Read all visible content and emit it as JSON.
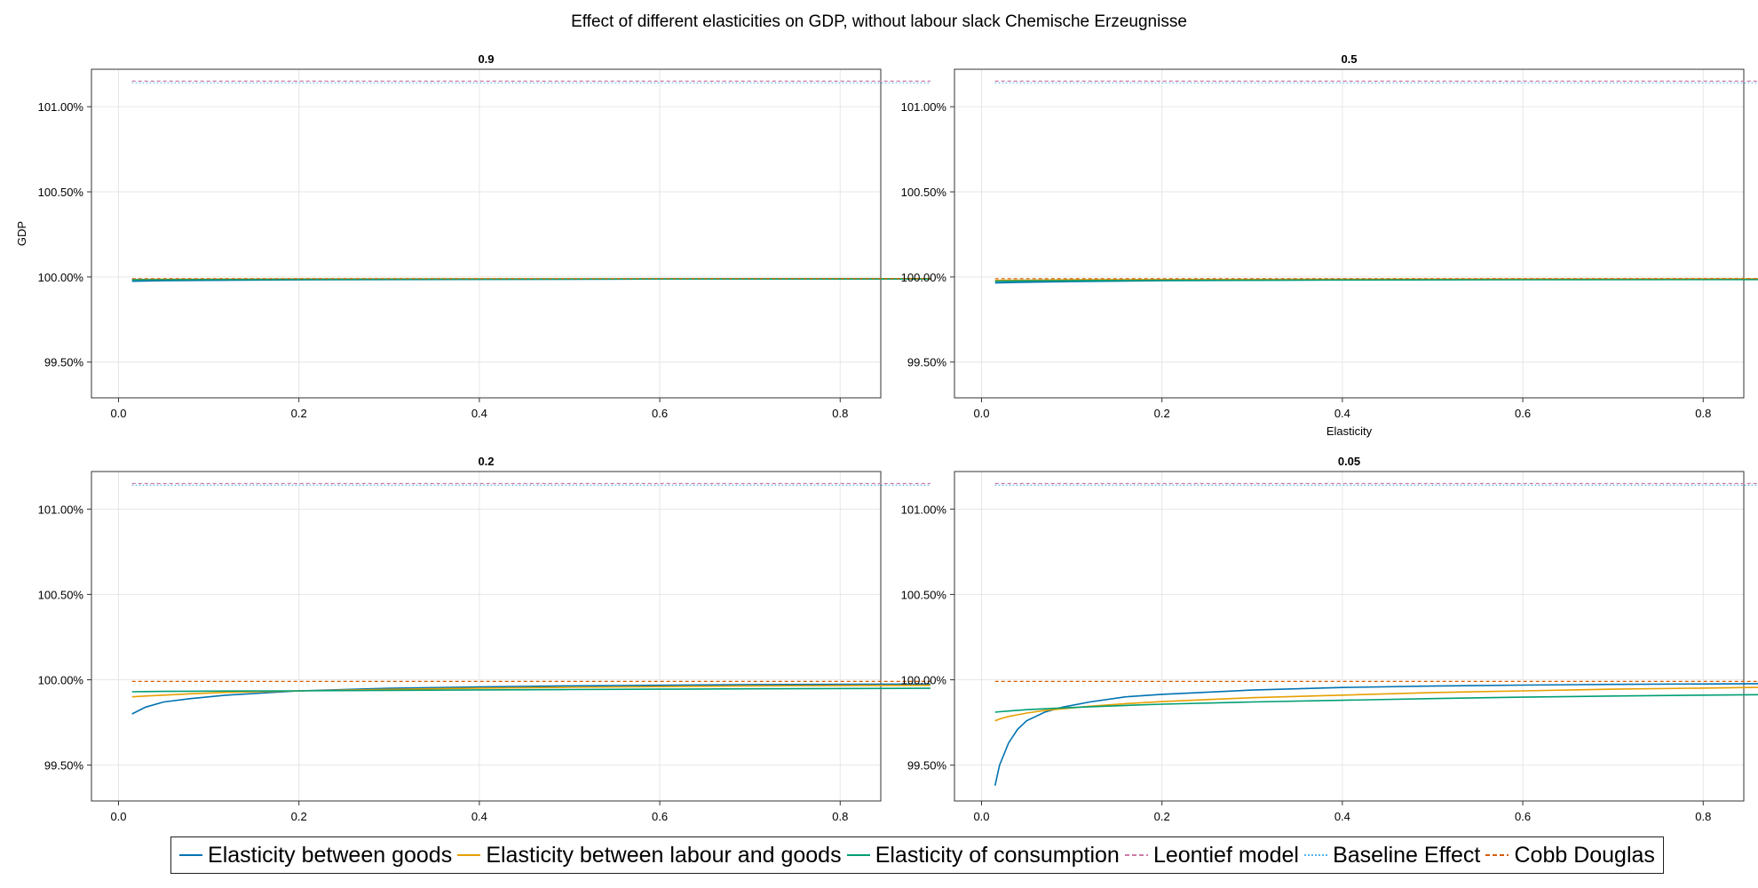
{
  "chart_data": {
    "type": "line",
    "title": "Effect of different elasticities on GDP, without labour slack Chemische Erzeugnisse",
    "ylabel": "GDP",
    "xlabel": "Elasticity",
    "xlim": [
      -0.03,
      0.845
    ],
    "ylim": [
      99.29,
      101.22
    ],
    "xticks": [
      0.0,
      0.2,
      0.4,
      0.6,
      0.8
    ],
    "xtick_labels": [
      "0.0",
      "0.2",
      "0.4",
      "0.6",
      "0.8"
    ],
    "yticks": [
      99.5,
      100.0,
      100.5,
      101.0
    ],
    "ytick_labels": [
      "99.50%",
      "100.00%",
      "100.50%",
      "101.00%"
    ],
    "grid": true,
    "legend_position": "bottom",
    "series_styles": [
      {
        "name": "Elasticity between goods",
        "color": "#0072b2",
        "style": "solid"
      },
      {
        "name": "Elasticity between labour and goods",
        "color": "#e69f00",
        "style": "solid"
      },
      {
        "name": "Elasticity of consumption",
        "color": "#009e73",
        "style": "solid"
      },
      {
        "name": "Leontief model",
        "color": "#cc79a7",
        "style": "dashed"
      },
      {
        "name": "Baseline Effect",
        "color": "#56b4e9",
        "style": "dotted"
      },
      {
        "name": "Cobb Douglas",
        "color": "#d55e00",
        "style": "dashed"
      }
    ],
    "panels": [
      {
        "title": "0.9",
        "x": [
          0.015,
          0.05,
          0.1,
          0.2,
          0.4,
          0.6,
          0.9
        ],
        "series": [
          {
            "name": "Elasticity between goods",
            "values": [
              99.975,
              99.978,
              99.98,
              99.983,
              99.986,
              99.988,
              99.989
            ]
          },
          {
            "name": "Elasticity between labour and goods",
            "values": [
              99.985,
              99.986,
              99.987,
              99.988,
              99.989,
              99.989,
              99.99
            ]
          },
          {
            "name": "Elasticity of consumption",
            "values": [
              99.983,
              99.984,
              99.985,
              99.986,
              99.987,
              99.988,
              99.988
            ]
          },
          {
            "name": "Leontief model",
            "values": [
              101.15,
              101.15,
              101.15,
              101.15,
              101.15,
              101.15,
              101.15
            ]
          },
          {
            "name": "Baseline Effect",
            "values": [
              101.14,
              101.14,
              101.14,
              101.14,
              101.14,
              101.14,
              101.14
            ]
          },
          {
            "name": "Cobb Douglas",
            "values": [
              99.99,
              99.99,
              99.99,
              99.99,
              99.99,
              99.99,
              99.99
            ]
          }
        ]
      },
      {
        "title": "0.5",
        "x": [
          0.015,
          0.05,
          0.1,
          0.2,
          0.4,
          0.6,
          0.9
        ],
        "series": [
          {
            "name": "Elasticity between goods",
            "values": [
              99.965,
              99.969,
              99.973,
              99.978,
              99.983,
              99.986,
              99.988
            ]
          },
          {
            "name": "Elasticity between labour and goods",
            "values": [
              99.98,
              99.981,
              99.983,
              99.985,
              99.987,
              99.988,
              99.989
            ]
          },
          {
            "name": "Elasticity of consumption",
            "values": [
              99.975,
              99.977,
              99.978,
              99.98,
              99.982,
              99.984,
              99.985
            ]
          },
          {
            "name": "Leontief model",
            "values": [
              101.15,
              101.15,
              101.15,
              101.15,
              101.15,
              101.15,
              101.15
            ]
          },
          {
            "name": "Baseline Effect",
            "values": [
              101.14,
              101.14,
              101.14,
              101.14,
              101.14,
              101.14,
              101.14
            ]
          },
          {
            "name": "Cobb Douglas",
            "values": [
              99.99,
              99.99,
              99.99,
              99.99,
              99.99,
              99.99,
              99.99
            ]
          }
        ]
      },
      {
        "title": "0.2",
        "x": [
          0.015,
          0.03,
          0.05,
          0.08,
          0.12,
          0.2,
          0.3,
          0.4,
          0.5,
          0.6,
          0.7,
          0.9
        ],
        "series": [
          {
            "name": "Elasticity between goods",
            "values": [
              99.8,
              99.84,
              99.87,
              99.89,
              99.91,
              99.935,
              99.95,
              99.958,
              99.964,
              99.968,
              99.972,
              99.975
            ]
          },
          {
            "name": "Elasticity between labour and goods",
            "values": [
              99.9,
              99.905,
              99.91,
              99.918,
              99.926,
              99.935,
              99.944,
              99.951,
              99.956,
              99.96,
              99.964,
              99.968
            ]
          },
          {
            "name": "Elasticity of consumption",
            "values": [
              99.93,
              99.931,
              99.932,
              99.933,
              99.934,
              99.935,
              99.938,
              99.941,
              99.943,
              99.945,
              99.947,
              99.95
            ]
          },
          {
            "name": "Leontief model",
            "values": [
              101.15,
              101.15,
              101.15,
              101.15,
              101.15,
              101.15,
              101.15,
              101.15,
              101.15,
              101.15,
              101.15,
              101.15
            ]
          },
          {
            "name": "Baseline Effect",
            "values": [
              101.14,
              101.14,
              101.14,
              101.14,
              101.14,
              101.14,
              101.14,
              101.14,
              101.14,
              101.14,
              101.14,
              101.14
            ]
          },
          {
            "name": "Cobb Douglas",
            "values": [
              99.99,
              99.99,
              99.99,
              99.99,
              99.99,
              99.99,
              99.99,
              99.99,
              99.99,
              99.99,
              99.99,
              99.99
            ]
          }
        ]
      },
      {
        "title": "0.05",
        "x": [
          0.015,
          0.02,
          0.03,
          0.04,
          0.05,
          0.07,
          0.09,
          0.12,
          0.16,
          0.2,
          0.3,
          0.4,
          0.5,
          0.6,
          0.7,
          0.9
        ],
        "series": [
          {
            "name": "Elasticity between goods",
            "values": [
              99.38,
              99.5,
              99.63,
              99.71,
              99.76,
              99.81,
              99.84,
              99.87,
              99.9,
              99.915,
              99.94,
              99.955,
              99.963,
              99.969,
              99.973,
              99.978
            ]
          },
          {
            "name": "Elasticity between labour and goods",
            "values": [
              99.76,
              99.77,
              99.785,
              99.795,
              99.805,
              99.82,
              99.83,
              99.845,
              99.86,
              99.872,
              99.895,
              99.91,
              99.925,
              99.935,
              99.945,
              99.958
            ]
          },
          {
            "name": "Elasticity of consumption",
            "values": [
              99.81,
              99.813,
              99.817,
              99.821,
              99.825,
              99.83,
              99.835,
              99.842,
              99.85,
              99.857,
              99.87,
              99.88,
              99.89,
              99.898,
              99.905,
              99.915
            ]
          },
          {
            "name": "Leontief model",
            "values": [
              101.15,
              101.15,
              101.15,
              101.15,
              101.15,
              101.15,
              101.15,
              101.15,
              101.15,
              101.15,
              101.15,
              101.15,
              101.15,
              101.15,
              101.15,
              101.15
            ]
          },
          {
            "name": "Baseline Effect",
            "values": [
              101.14,
              101.14,
              101.14,
              101.14,
              101.14,
              101.14,
              101.14,
              101.14,
              101.14,
              101.14,
              101.14,
              101.14,
              101.14,
              101.14,
              101.14,
              101.14
            ]
          },
          {
            "name": "Cobb Douglas",
            "values": [
              99.99,
              99.99,
              99.99,
              99.99,
              99.99,
              99.99,
              99.99,
              99.99,
              99.99,
              99.99,
              99.99,
              99.99,
              99.99,
              99.99,
              99.99,
              99.99
            ]
          }
        ]
      }
    ]
  }
}
